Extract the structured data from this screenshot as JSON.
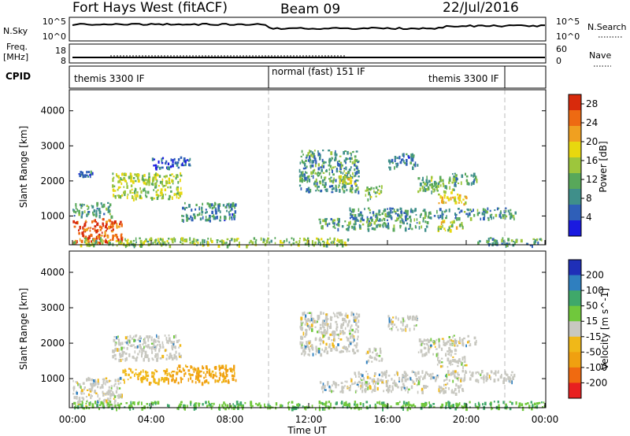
{
  "header": {
    "radar": "Fort Hays West (fitACF)",
    "beam": "Beam 09",
    "date": "22/Jul/2016"
  },
  "noise_panel": {
    "left_label": "N.Sky",
    "left_ticks": [
      "10^5",
      "10^0"
    ],
    "right_label": "N.Search",
    "right_ticks": [
      "10^5",
      "10^0"
    ]
  },
  "freq_panel": {
    "left_label_1": "Freq.",
    "left_label_2": "[MHz]",
    "left_ticks": [
      "18",
      "8"
    ],
    "right_label": "Nave",
    "right_ticks": [
      "60",
      "0"
    ]
  },
  "cpid_panel": {
    "label": "CPID",
    "segments": [
      "themis 3300 IF",
      "normal (fast) 151 IF",
      "themis 3300 IF"
    ]
  },
  "chart_data": [
    {
      "type": "heatmap",
      "title": "",
      "ylabel": "Slant Range [km]",
      "ylim": [
        180,
        4600
      ],
      "yticks": [
        "1000",
        "2000",
        "3000",
        "4000"
      ],
      "xlabel": "",
      "xlim": [
        "00:00",
        "24:00"
      ],
      "colorbar": {
        "label": "Power [dB]",
        "range": [
          0,
          30
        ],
        "ticks": [
          "4",
          "8",
          "12",
          "16",
          "20",
          "24",
          "28"
        ],
        "colors": [
          "#1a1ae0",
          "#2f5fb8",
          "#3f8f8a",
          "#58a85a",
          "#9dc63c",
          "#e8d80e",
          "#f0a020",
          "#ee6a12",
          "#d82a0c"
        ]
      },
      "echo_regions": [
        {
          "t": [
            0.0,
            2.5
          ],
          "range_km": [
            250,
            950
          ],
          "value": 26
        },
        {
          "t": [
            0.0,
            2.0
          ],
          "range_km": [
            1000,
            1400
          ],
          "value": 10
        },
        {
          "t": [
            0.3,
            1.0
          ],
          "range_km": [
            2150,
            2300
          ],
          "value": 6
        },
        {
          "t": [
            2.0,
            5.5
          ],
          "range_km": [
            1500,
            2250
          ],
          "value": 15
        },
        {
          "t": [
            5.5,
            8.3
          ],
          "range_km": [
            900,
            1400
          ],
          "value": 8
        },
        {
          "t": [
            4.0,
            6.0
          ],
          "range_km": [
            2400,
            2700
          ],
          "value": 5
        },
        {
          "t": [
            0.0,
            14.0
          ],
          "range_km": [
            180,
            400
          ],
          "value": 14
        },
        {
          "t": [
            11.5,
            14.5
          ],
          "range_km": [
            1700,
            2900
          ],
          "value": 10
        },
        {
          "t": [
            13.5,
            14.5
          ],
          "range_km": [
            1950,
            2250
          ],
          "value": 18
        },
        {
          "t": [
            14.0,
            22.5
          ],
          "range_km": [
            950,
            1250
          ],
          "value": 9
        },
        {
          "t": [
            14.8,
            15.7
          ],
          "range_km": [
            1500,
            1900
          ],
          "value": 13
        },
        {
          "t": [
            16.0,
            17.5
          ],
          "range_km": [
            2400,
            2800
          ],
          "value": 8
        },
        {
          "t": [
            17.5,
            19.5
          ],
          "range_km": [
            1700,
            2150
          ],
          "value": 12
        },
        {
          "t": [
            18.5,
            20.0
          ],
          "range_km": [
            1350,
            1650
          ],
          "value": 18
        },
        {
          "t": [
            19.0,
            20.5
          ],
          "range_km": [
            1950,
            2250
          ],
          "value": 11
        },
        {
          "t": [
            18.5,
            19.8
          ],
          "range_km": [
            600,
            900
          ],
          "value": 16
        },
        {
          "t": [
            12.5,
            18.0
          ],
          "range_km": [
            650,
            950
          ],
          "value": 10
        },
        {
          "t": [
            20.5,
            23.8
          ],
          "range_km": [
            180,
            400
          ],
          "value": 10
        }
      ]
    },
    {
      "type": "heatmap",
      "title": "",
      "ylabel": "Slant Range [km]",
      "ylim": [
        180,
        4600
      ],
      "yticks": [
        "1000",
        "2000",
        "3000",
        "4000"
      ],
      "xlabel": "Time UT",
      "xticks": [
        "00:00",
        "04:00",
        "08:00",
        "12:00",
        "16:00",
        "20:00",
        "00:00"
      ],
      "colorbar": {
        "label": "Velocity [m s^-1]",
        "ticks": [
          "200",
          "100",
          "50",
          "15",
          "-15",
          "-50",
          "-100",
          "-200"
        ],
        "colors": [
          "#1f2fb8",
          "#2f7fbf",
          "#3fa86a",
          "#70c83c",
          "#c8c8c0",
          "#f0b818",
          "#f0a010",
          "#f06a10",
          "#e82020"
        ]
      },
      "echo_regions": [
        {
          "t": [
            0.0,
            2.5
          ],
          "range_km": [
            250,
            1050
          ],
          "value": 0
        },
        {
          "t": [
            2.0,
            5.5
          ],
          "range_km": [
            1550,
            2250
          ],
          "value": 0
        },
        {
          "t": [
            5.0,
            8.3
          ],
          "range_km": [
            900,
            1400
          ],
          "value": -60
        },
        {
          "t": [
            2.5,
            5.0
          ],
          "range_km": [
            900,
            1300
          ],
          "value": -40
        },
        {
          "t": [
            0.0,
            14.0
          ],
          "range_km": [
            180,
            380
          ],
          "value": 40
        },
        {
          "t": [
            11.5,
            14.5
          ],
          "range_km": [
            1700,
            2900
          ],
          "value": 0
        },
        {
          "t": [
            14.0,
            22.5
          ],
          "range_km": [
            950,
            1250
          ],
          "value": 0
        },
        {
          "t": [
            14.8,
            15.7
          ],
          "range_km": [
            1500,
            1900
          ],
          "value": 0
        },
        {
          "t": [
            16.0,
            17.5
          ],
          "range_km": [
            2400,
            2800
          ],
          "value": 0
        },
        {
          "t": [
            17.5,
            19.5
          ],
          "range_km": [
            1700,
            2150
          ],
          "value": 0
        },
        {
          "t": [
            18.5,
            20.0
          ],
          "range_km": [
            1350,
            1650
          ],
          "value": 0
        },
        {
          "t": [
            19.0,
            20.5
          ],
          "range_km": [
            1950,
            2250
          ],
          "value": 0
        },
        {
          "t": [
            18.5,
            19.8
          ],
          "range_km": [
            600,
            900
          ],
          "value": 0
        },
        {
          "t": [
            12.5,
            18.0
          ],
          "range_km": [
            650,
            950
          ],
          "value": 0
        },
        {
          "t": [
            14.0,
            24.0
          ],
          "range_km": [
            180,
            380
          ],
          "value": 40
        }
      ]
    }
  ]
}
